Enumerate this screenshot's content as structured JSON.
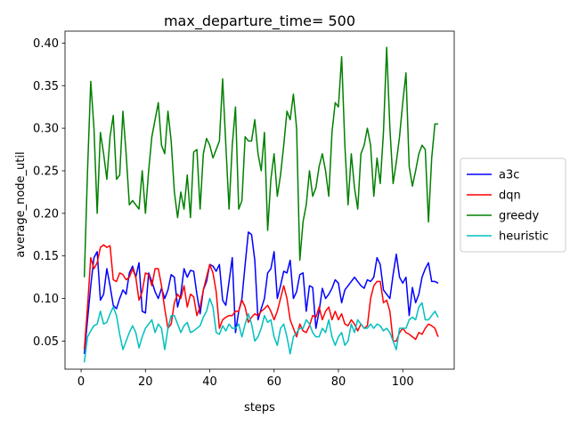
{
  "chart_data": {
    "type": "line",
    "title": "max_departure_time= 500",
    "xlabel": "steps",
    "ylabel": "average_node_util",
    "xlim": [
      -5,
      116
    ],
    "ylim": [
      0.017,
      0.414
    ],
    "xticks": [
      0,
      20,
      40,
      60,
      80,
      100
    ],
    "yticks": [
      0.05,
      0.1,
      0.15,
      0.2,
      0.25,
      0.3,
      0.35,
      0.4
    ],
    "ytick_labels": [
      "0.05",
      "0.10",
      "0.15",
      "0.20",
      "0.25",
      "0.30",
      "0.35",
      "0.40"
    ],
    "grid": false,
    "legend_position": "right-outside",
    "x": [
      1,
      2,
      3,
      4,
      5,
      6,
      7,
      8,
      9,
      10,
      11,
      12,
      13,
      14,
      15,
      16,
      17,
      18,
      19,
      20,
      21,
      22,
      23,
      24,
      25,
      26,
      27,
      28,
      29,
      30,
      31,
      32,
      33,
      34,
      35,
      36,
      37,
      38,
      39,
      40,
      41,
      42,
      43,
      44,
      45,
      46,
      47,
      48,
      49,
      50,
      51,
      52,
      53,
      54,
      55,
      56,
      57,
      58,
      59,
      60,
      61,
      62,
      63,
      64,
      65,
      66,
      67,
      68,
      69,
      70,
      71,
      72,
      73,
      74,
      75,
      76,
      77,
      78,
      79,
      80,
      81,
      82,
      83,
      84,
      85,
      86,
      87,
      88,
      89,
      90,
      91,
      92,
      93,
      94,
      95,
      96,
      97,
      98,
      99,
      100,
      101,
      102,
      103,
      104,
      105,
      106,
      107,
      108,
      109,
      110,
      111
    ],
    "series": [
      {
        "name": "a3c",
        "color": "#0000ff",
        "values": [
          0.035,
          0.075,
          0.115,
          0.148,
          0.155,
          0.098,
          0.105,
          0.135,
          0.115,
          0.092,
          0.088,
          0.1,
          0.11,
          0.105,
          0.13,
          0.138,
          0.125,
          0.142,
          0.085,
          0.083,
          0.13,
          0.12,
          0.108,
          0.1,
          0.112,
          0.1,
          0.11,
          0.128,
          0.125,
          0.09,
          0.105,
          0.135,
          0.125,
          0.133,
          0.132,
          0.105,
          0.082,
          0.11,
          0.12,
          0.14,
          0.138,
          0.132,
          0.14,
          0.098,
          0.092,
          0.12,
          0.148,
          0.06,
          0.085,
          0.1,
          0.14,
          0.178,
          0.175,
          0.145,
          0.075,
          0.088,
          0.1,
          0.13,
          0.135,
          0.155,
          0.1,
          0.115,
          0.132,
          0.13,
          0.145,
          0.1,
          0.108,
          0.128,
          0.13,
          0.085,
          0.115,
          0.113,
          0.065,
          0.085,
          0.112,
          0.1,
          0.105,
          0.112,
          0.122,
          0.118,
          0.095,
          0.11,
          0.115,
          0.12,
          0.125,
          0.12,
          0.115,
          0.112,
          0.122,
          0.12,
          0.125,
          0.148,
          0.14,
          0.11,
          0.105,
          0.1,
          0.128,
          0.152,
          0.125,
          0.118,
          0.125,
          0.08,
          0.113,
          0.095,
          0.105,
          0.125,
          0.135,
          0.142,
          0.12,
          0.12,
          0.118
        ]
      },
      {
        "name": "dqn",
        "color": "#ff0000",
        "values": [
          0.04,
          0.09,
          0.148,
          0.135,
          0.142,
          0.16,
          0.163,
          0.16,
          0.162,
          0.122,
          0.12,
          0.13,
          0.128,
          0.122,
          0.125,
          0.135,
          0.125,
          0.098,
          0.108,
          0.13,
          0.128,
          0.115,
          0.135,
          0.135,
          0.115,
          0.088,
          0.065,
          0.07,
          0.095,
          0.105,
          0.1,
          0.115,
          0.09,
          0.105,
          0.102,
          0.08,
          0.09,
          0.11,
          0.125,
          0.14,
          0.13,
          0.108,
          0.065,
          0.075,
          0.078,
          0.08,
          0.08,
          0.085,
          0.085,
          0.098,
          0.09,
          0.072,
          0.078,
          0.082,
          0.08,
          0.085,
          0.088,
          0.092,
          0.085,
          0.075,
          0.085,
          0.1,
          0.115,
          0.1,
          0.075,
          0.065,
          0.055,
          0.07,
          0.062,
          0.06,
          0.068,
          0.08,
          0.078,
          0.09,
          0.075,
          0.085,
          0.09,
          0.075,
          0.085,
          0.075,
          0.082,
          0.07,
          0.068,
          0.075,
          0.07,
          0.062,
          0.07,
          0.065,
          0.068,
          0.1,
          0.115,
          0.12,
          0.12,
          0.095,
          0.098,
          0.085,
          0.05,
          0.05,
          0.06,
          0.065,
          0.06,
          0.058,
          0.055,
          0.052,
          0.06,
          0.058,
          0.065,
          0.07,
          0.068,
          0.065,
          0.055
        ]
      },
      {
        "name": "greedy",
        "color": "#008000",
        "values": [
          0.125,
          0.25,
          0.355,
          0.3,
          0.2,
          0.295,
          0.27,
          0.24,
          0.29,
          0.315,
          0.24,
          0.245,
          0.32,
          0.27,
          0.21,
          0.215,
          0.21,
          0.205,
          0.25,
          0.2,
          0.25,
          0.29,
          0.31,
          0.33,
          0.28,
          0.27,
          0.32,
          0.285,
          0.225,
          0.195,
          0.225,
          0.205,
          0.245,
          0.195,
          0.272,
          0.275,
          0.205,
          0.27,
          0.288,
          0.28,
          0.265,
          0.275,
          0.285,
          0.358,
          0.28,
          0.205,
          0.28,
          0.325,
          0.205,
          0.215,
          0.29,
          0.285,
          0.285,
          0.31,
          0.27,
          0.25,
          0.295,
          0.18,
          0.24,
          0.27,
          0.22,
          0.245,
          0.28,
          0.32,
          0.31,
          0.34,
          0.3,
          0.145,
          0.19,
          0.21,
          0.25,
          0.22,
          0.23,
          0.255,
          0.27,
          0.25,
          0.22,
          0.295,
          0.33,
          0.325,
          0.384,
          0.28,
          0.21,
          0.27,
          0.23,
          0.205,
          0.27,
          0.28,
          0.3,
          0.28,
          0.22,
          0.265,
          0.235,
          0.295,
          0.395,
          0.3,
          0.235,
          0.26,
          0.29,
          0.33,
          0.365,
          0.255,
          0.232,
          0.25,
          0.27,
          0.28,
          0.275,
          0.19,
          0.265,
          0.305,
          0.305
        ]
      },
      {
        "name": "heuristic",
        "color": "#00bfbf",
        "values": [
          0.025,
          0.055,
          0.062,
          0.068,
          0.07,
          0.085,
          0.07,
          0.072,
          0.082,
          0.09,
          0.08,
          0.058,
          0.04,
          0.05,
          0.06,
          0.068,
          0.06,
          0.042,
          0.055,
          0.065,
          0.07,
          0.075,
          0.06,
          0.07,
          0.065,
          0.04,
          0.065,
          0.08,
          0.08,
          0.07,
          0.06,
          0.068,
          0.072,
          0.06,
          0.062,
          0.065,
          0.068,
          0.078,
          0.085,
          0.1,
          0.09,
          0.06,
          0.058,
          0.068,
          0.062,
          0.07,
          0.065,
          0.065,
          0.07,
          0.055,
          0.07,
          0.082,
          0.07,
          0.05,
          0.055,
          0.065,
          0.08,
          0.072,
          0.075,
          0.055,
          0.045,
          0.065,
          0.07,
          0.055,
          0.035,
          0.055,
          0.06,
          0.065,
          0.065,
          0.075,
          0.07,
          0.06,
          0.055,
          0.055,
          0.065,
          0.06,
          0.075,
          0.055,
          0.045,
          0.055,
          0.06,
          0.045,
          0.05,
          0.07,
          0.06,
          0.075,
          0.07,
          0.065,
          0.065,
          0.07,
          0.065,
          0.07,
          0.068,
          0.062,
          0.065,
          0.06,
          0.05,
          0.04,
          0.065,
          0.065,
          0.065,
          0.075,
          0.078,
          0.075,
          0.09,
          0.095,
          0.075,
          0.075,
          0.08,
          0.085,
          0.078
        ]
      }
    ]
  }
}
